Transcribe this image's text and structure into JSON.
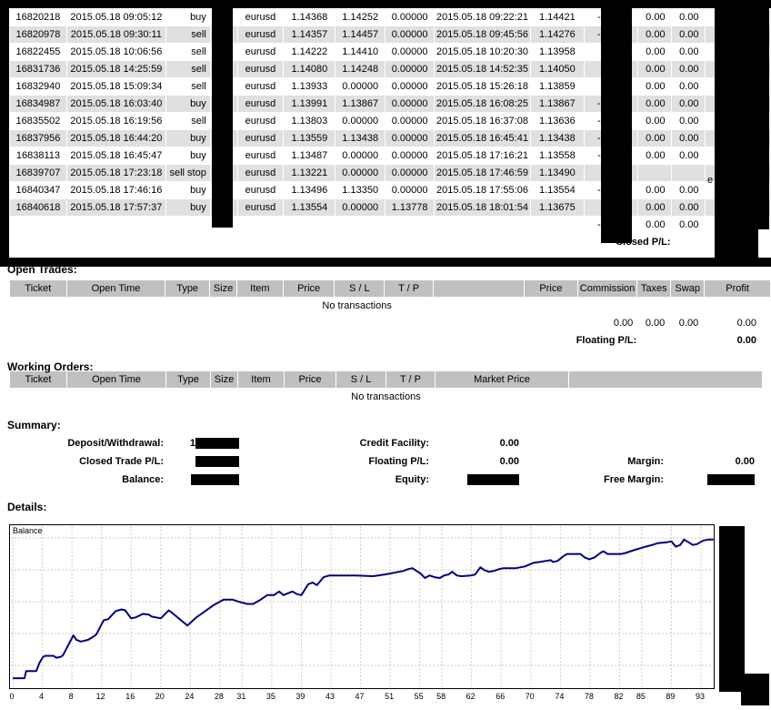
{
  "sections": {
    "open_trades_heading": "Open Trades:",
    "working_orders_heading": "Working Orders:",
    "summary_heading": "Summary:",
    "details_heading": "Details:"
  },
  "closed_trades": {
    "rows": [
      [
        "16820218",
        "2015.05.18 09:05:12",
        "buy",
        "",
        "eurusd",
        "1.14368",
        "1.14252",
        "0.00000",
        "2015.05.18 09:22:21",
        "1.14421",
        "-",
        "0.00",
        "0.00",
        ""
      ],
      [
        "16820978",
        "2015.05.18 09:30:11",
        "sell",
        "",
        "eurusd",
        "1.14357",
        "1.14457",
        "0.00000",
        "2015.05.18 09:45:56",
        "1.14276",
        "-",
        "0.00",
        "0.00",
        ""
      ],
      [
        "16822455",
        "2015.05.18 10:06:56",
        "sell",
        "",
        "eurusd",
        "1.14222",
        "1.14410",
        "0.00000",
        "2015.05.18 10:20:30",
        "1.13958",
        "",
        "0.00",
        "0.00",
        ""
      ],
      [
        "16831736",
        "2015.05.18 14:25:59",
        "sell",
        "",
        "eurusd",
        "1.14080",
        "1.14248",
        "0.00000",
        "2015.05.18 14:52:35",
        "1.14050",
        "",
        "0.00",
        "0.00",
        ""
      ],
      [
        "16832940",
        "2015.05.18 15:09:34",
        "sell",
        "",
        "eurusd",
        "1.13933",
        "0.00000",
        "0.00000",
        "2015.05.18 15:26:18",
        "1.13859",
        "",
        "0.00",
        "0.00",
        ""
      ],
      [
        "16834987",
        "2015.05.18 16:03:40",
        "buy",
        "",
        "eurusd",
        "1.13991",
        "1.13867",
        "0.00000",
        "2015.05.18 16:08:25",
        "1.13867",
        "-",
        "0.00",
        "0.00",
        ""
      ],
      [
        "16835502",
        "2015.05.18 16:19:56",
        "sell",
        "",
        "eurusd",
        "1.13803",
        "0.00000",
        "0.00000",
        "2015.05.18 16:37:08",
        "1.13636",
        "-",
        "0.00",
        "0.00",
        ""
      ],
      [
        "16837956",
        "2015.05.18 16:44:20",
        "buy",
        "",
        "eurusd",
        "1.13559",
        "1.13438",
        "0.00000",
        "2015.05.18 16:45:41",
        "1.13438",
        "-",
        "0.00",
        "0.00",
        ""
      ],
      [
        "16838113",
        "2015.05.18 16:45:47",
        "buy",
        "",
        "eurusd",
        "1.13487",
        "0.00000",
        "0.00000",
        "2015.05.18 17:16:21",
        "1.13558",
        "-",
        "0.00",
        "0.00",
        ""
      ],
      [
        "16839707",
        "2015.05.18 17:23:18",
        "sell stop",
        "",
        "eurusd",
        "1.13221",
        "0.00000",
        "0.00000",
        "2015.05.18 17:46:59",
        "1.13490",
        "",
        "",
        "",
        ""
      ],
      [
        "16840347",
        "2015.05.18 17:46:16",
        "buy",
        "",
        "eurusd",
        "1.13496",
        "1.13350",
        "0.00000",
        "2015.05.18 17:55:06",
        "1.13554",
        "-",
        "0.00",
        "0.00",
        ""
      ],
      [
        "16840618",
        "2015.05.18 17:57:37",
        "buy",
        "",
        "eurusd",
        "1.13554",
        "0.00000",
        "1.13778",
        "2015.05.18 18:01:54",
        "1.13675",
        "",
        "0.00",
        "0.00",
        ""
      ]
    ],
    "totals": {
      "commission": "-",
      "taxes": "0.00",
      "swap": "0.00",
      "profit": ""
    },
    "closed_pl_label": "Closed P/L:",
    "cancelled_fragment": "e"
  },
  "open_trades": {
    "headers": [
      "Ticket",
      "Open Time",
      "Type",
      "Size",
      "Item",
      "Price",
      "S / L",
      "T / P",
      "",
      "Price",
      "Commission",
      "Taxes",
      "Swap",
      "Profit"
    ],
    "no_transactions": "No transactions",
    "totals": {
      "commission": "0.00",
      "taxes": "0.00",
      "swap": "0.00",
      "profit": "0.00"
    },
    "floating_pl_label": "Floating P/L:",
    "floating_pl_value": "0.00"
  },
  "working_orders": {
    "headers": [
      "Ticket",
      "Open Time",
      "Type",
      "Size",
      "Item",
      "Price",
      "S / L",
      "T / P",
      "Market Price",
      ""
    ],
    "no_transactions": "No transactions"
  },
  "summary": {
    "deposit_withdrawal_label": "Deposit/Withdrawal:",
    "deposit_withdrawal_fragment": "1",
    "credit_facility_label": "Credit Facility:",
    "credit_facility_value": "0.00",
    "closed_trade_pl_label": "Closed Trade P/L:",
    "floating_pl_label": "Floating P/L:",
    "floating_pl_value": "0.00",
    "margin_label": "Margin:",
    "margin_value": "0.00",
    "balance_label": "Balance:",
    "equity_label": "Equity:",
    "free_margin_label": "Free Margin:"
  },
  "chart_data": {
    "type": "line",
    "title": "Balance",
    "xlabel": "",
    "ylabel": "",
    "x_tick_labels": [
      0,
      4,
      8,
      12,
      16,
      20,
      24,
      28,
      31,
      35,
      39,
      43,
      47,
      51,
      55,
      58,
      62,
      66,
      70,
      74,
      78,
      82,
      85,
      89,
      93
    ],
    "x_range": [
      0,
      95
    ],
    "grid": "dashed",
    "line_color": "#000080",
    "y_note": "y-axis labels redacted in source; values are relative height 0-100 of plot",
    "series": [
      {
        "name": "Balance",
        "points": [
          [
            0,
            5.6
          ],
          [
            1.6,
            5.6
          ],
          [
            1.8,
            10.1
          ],
          [
            3.2,
            10.1
          ],
          [
            3.6,
            15.1
          ],
          [
            4.1,
            19
          ],
          [
            4.4,
            19.6
          ],
          [
            5.5,
            19.6
          ],
          [
            5.9,
            18.4
          ],
          [
            6.5,
            19
          ],
          [
            6.8,
            20.1
          ],
          [
            8.2,
            32.4
          ],
          [
            8.6,
            29.6
          ],
          [
            9.2,
            28.5
          ],
          [
            10.2,
            29.6
          ],
          [
            10.8,
            31.3
          ],
          [
            11.3,
            33
          ],
          [
            12.3,
            41.9
          ],
          [
            12.9,
            42.5
          ],
          [
            13.9,
            47.5
          ],
          [
            14.7,
            48.6
          ],
          [
            15.2,
            48
          ],
          [
            16,
            43
          ],
          [
            16.6,
            43.6
          ],
          [
            17.6,
            45.8
          ],
          [
            18.4,
            45.3
          ],
          [
            18.8,
            44.1
          ],
          [
            20,
            43
          ],
          [
            21.1,
            48
          ],
          [
            21.7,
            45.8
          ],
          [
            23.6,
            38.5
          ],
          [
            24.8,
            43.6
          ],
          [
            26,
            47.5
          ],
          [
            27.2,
            51.4
          ],
          [
            28.5,
            54.7
          ],
          [
            29.7,
            54.7
          ],
          [
            30.4,
            53.6
          ],
          [
            31.7,
            52
          ],
          [
            32.5,
            52
          ],
          [
            33.5,
            54.7
          ],
          [
            34.4,
            57.5
          ],
          [
            35.3,
            57.5
          ],
          [
            36,
            59.8
          ],
          [
            36.6,
            57.5
          ],
          [
            37.2,
            58.7
          ],
          [
            37.8,
            59.8
          ],
          [
            38.4,
            58.1
          ],
          [
            39,
            57.5
          ],
          [
            39.9,
            64.2
          ],
          [
            40.5,
            65.4
          ],
          [
            41.1,
            63.7
          ],
          [
            42,
            68.7
          ],
          [
            42.8,
            69.8
          ],
          [
            44.1,
            69.8
          ],
          [
            46.3,
            69.8
          ],
          [
            48.7,
            69.3
          ],
          [
            50.3,
            70.4
          ],
          [
            52.8,
            72.6
          ],
          [
            53.4,
            73.7
          ],
          [
            54,
            74.3
          ],
          [
            55.1,
            71
          ],
          [
            55.7,
            68.2
          ],
          [
            56.3,
            69.8
          ],
          [
            57,
            68.7
          ],
          [
            57.7,
            68.2
          ],
          [
            58.3,
            69.8
          ],
          [
            58.9,
            70.4
          ],
          [
            59.4,
            72.1
          ],
          [
            60,
            69.8
          ],
          [
            60.6,
            69.3
          ],
          [
            61.9,
            69.8
          ],
          [
            62.5,
            70.4
          ],
          [
            63.2,
            74.9
          ],
          [
            63.7,
            73.2
          ],
          [
            64.3,
            72.1
          ],
          [
            65,
            72.6
          ],
          [
            65.7,
            73.7
          ],
          [
            66.3,
            74.3
          ],
          [
            68,
            74.3
          ],
          [
            68.6,
            74.9
          ],
          [
            69.2,
            75.4
          ],
          [
            70.4,
            77.7
          ],
          [
            71.2,
            78.2
          ],
          [
            72,
            78.8
          ],
          [
            72.7,
            79.3
          ],
          [
            73,
            78.2
          ],
          [
            73.6,
            78.8
          ],
          [
            74.5,
            82.1
          ],
          [
            74.9,
            83.2
          ],
          [
            76.1,
            83.2
          ],
          [
            76.7,
            83.2
          ],
          [
            77.3,
            81
          ],
          [
            77.9,
            79.9
          ],
          [
            78.6,
            81
          ],
          [
            79.4,
            83.8
          ],
          [
            79.8,
            84.9
          ],
          [
            80.4,
            83.2
          ],
          [
            81,
            83.2
          ],
          [
            82.2,
            83.2
          ],
          [
            82.8,
            83.8
          ],
          [
            83.9,
            85.5
          ],
          [
            84.7,
            86.6
          ],
          [
            85.5,
            87.7
          ],
          [
            86.4,
            88.8
          ],
          [
            87.1,
            89.9
          ],
          [
            88.4,
            90.5
          ],
          [
            89,
            91.1
          ],
          [
            89.6,
            87.7
          ],
          [
            90.2,
            88.8
          ],
          [
            90.7,
            92.2
          ],
          [
            91.3,
            90.5
          ],
          [
            91.9,
            88.8
          ],
          [
            92.5,
            89.4
          ],
          [
            93.3,
            91.6
          ],
          [
            94.1,
            92.2
          ],
          [
            94.7,
            92.2
          ]
        ]
      }
    ]
  }
}
